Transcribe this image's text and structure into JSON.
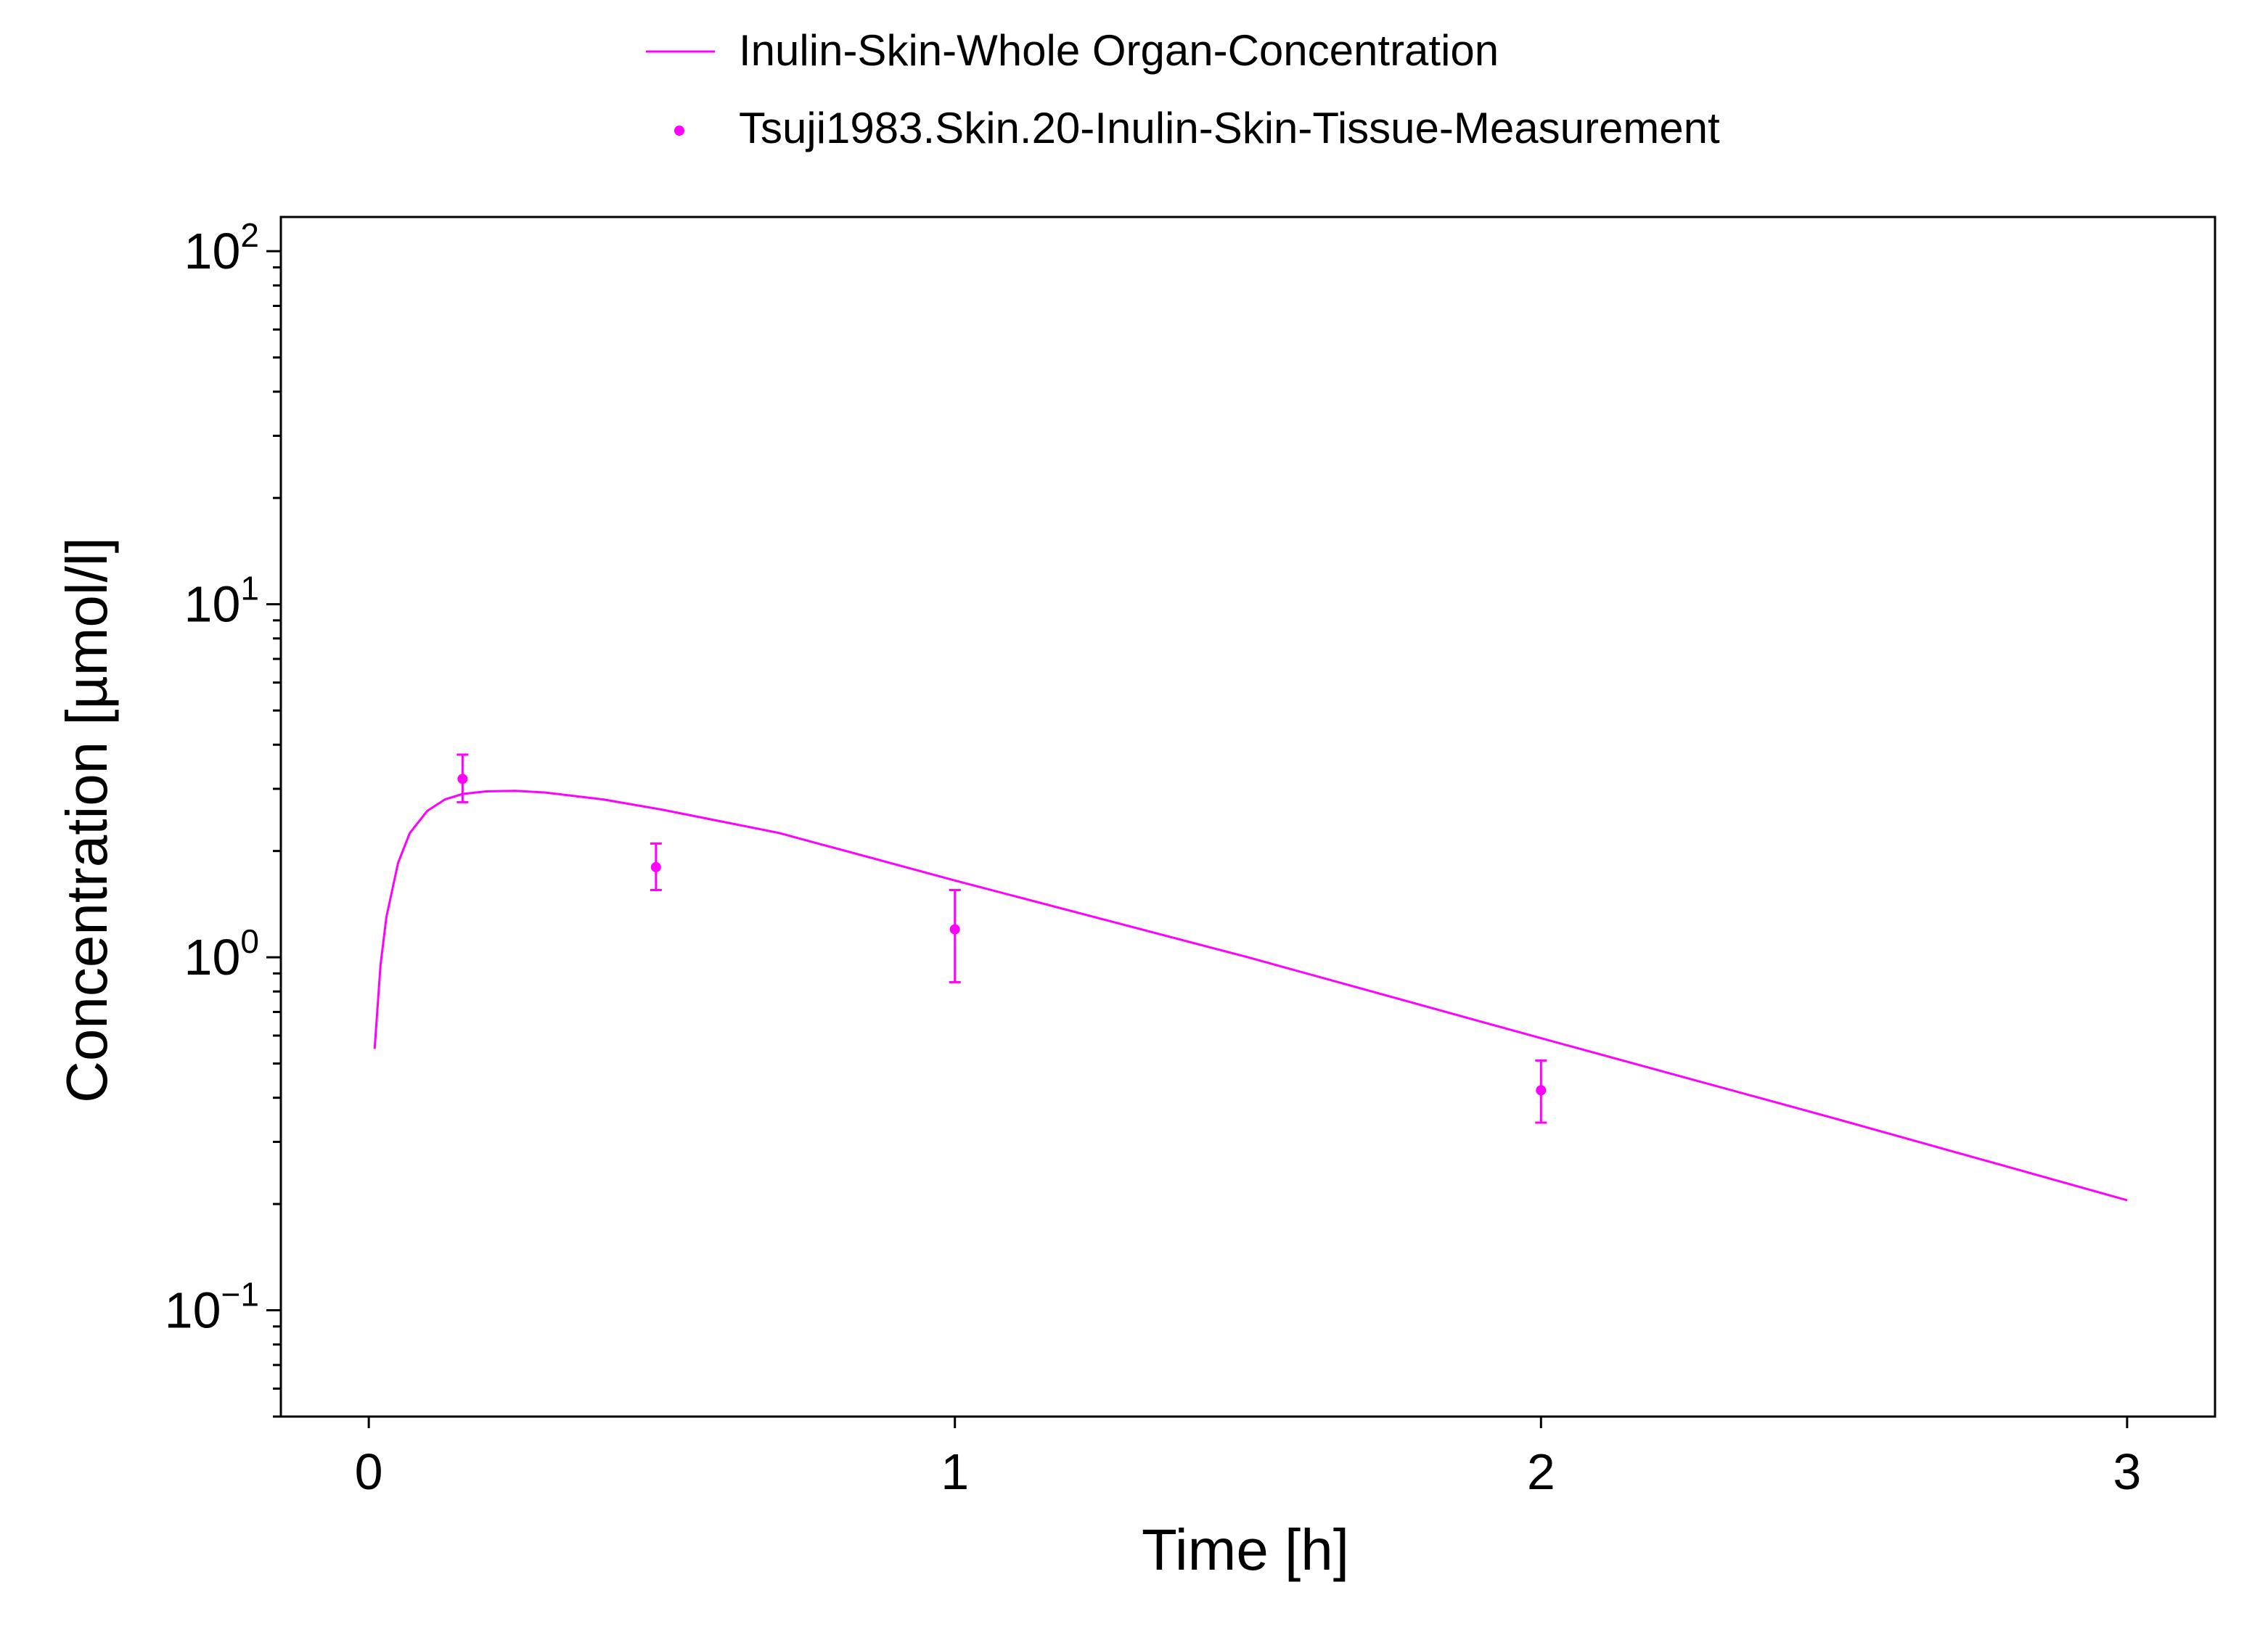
{
  "chart_data": {
    "type": "line",
    "xlabel": "Time [h]",
    "ylabel": "Concentration [µmol/l]",
    "x_ticks": [
      "0",
      "1",
      "2",
      "3"
    ],
    "y_ticks": [
      {
        "base": "10",
        "exp": "2",
        "value": 100
      },
      {
        "base": "10",
        "exp": "1",
        "value": 10
      },
      {
        "base": "10",
        "exp": "0",
        "value": 1
      },
      {
        "base": "10",
        "exp": "−1",
        "value": 0.1
      }
    ],
    "xlim": [
      -0.15,
      3.15
    ],
    "ylim": [
      0.05,
      125
    ],
    "yscale": "log",
    "grid": false,
    "legend_position": "top-center",
    "color": "#ff00ff",
    "series": [
      {
        "name": "Inulin-Skin-Whole Organ-Concentration",
        "kind": "line",
        "x": [
          0.01,
          0.02,
          0.03,
          0.05,
          0.07,
          0.1,
          0.13,
          0.16,
          0.2,
          0.25,
          0.3,
          0.4,
          0.5,
          0.7,
          1.0,
          1.5,
          2.0,
          2.5,
          3.0
        ],
        "y": [
          0.55,
          0.95,
          1.3,
          1.85,
          2.25,
          2.6,
          2.8,
          2.9,
          2.95,
          2.96,
          2.93,
          2.8,
          2.62,
          2.25,
          1.65,
          1.0,
          0.59,
          0.35,
          0.205
        ]
      },
      {
        "name": "Tsuji1983.Skin.20-Inulin-Skin-Tissue-Measurement",
        "kind": "scatter",
        "x": [
          0.16,
          0.49,
          1.0,
          2.0
        ],
        "y": [
          3.2,
          1.8,
          1.2,
          0.42
        ],
        "y_low": [
          2.75,
          1.55,
          0.85,
          0.34
        ],
        "y_high": [
          3.75,
          2.1,
          1.55,
          0.51
        ]
      }
    ]
  }
}
